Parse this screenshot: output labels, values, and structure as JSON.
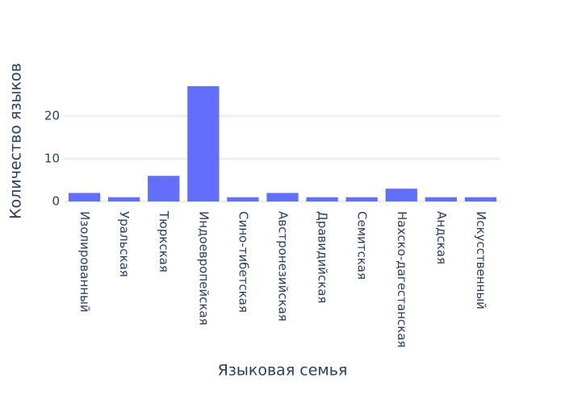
{
  "chart_data": {
    "type": "bar",
    "x_label": "Языковая семья",
    "y_label": "Количество языков",
    "categories": [
      "Изолированный",
      "Уральская",
      "Тюркская",
      "Индоевропейская",
      "Сино-тибетская",
      "Австронезийская",
      "Дравидийская",
      "Семитская",
      "Нахско-дагестанская",
      "Андская",
      "Искусственный"
    ],
    "values": [
      2,
      1,
      6,
      27,
      1,
      2,
      1,
      1,
      3,
      1,
      1
    ],
    "color": "#636efa",
    "ylim": [
      0,
      28.4
    ],
    "yticks": [
      0,
      10,
      20
    ],
    "grid": true
  }
}
